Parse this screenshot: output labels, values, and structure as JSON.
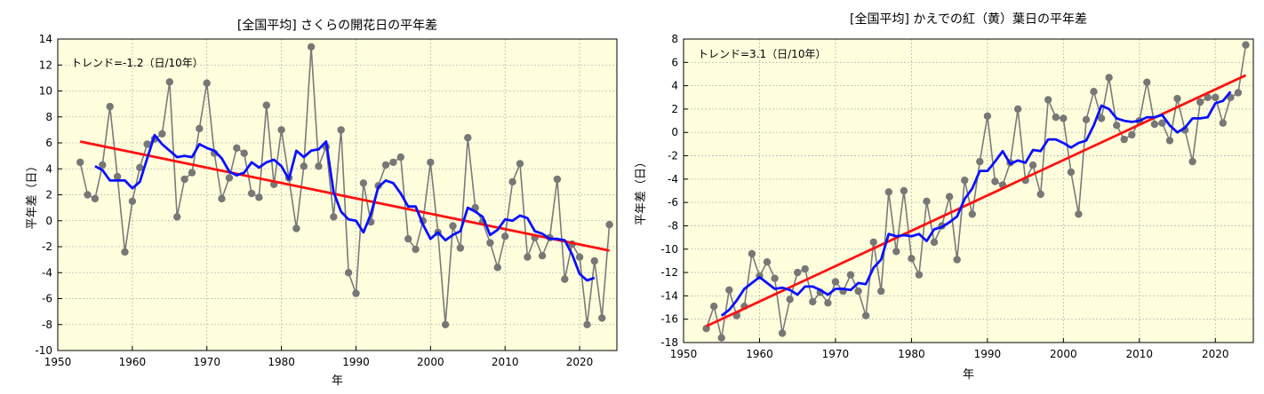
{
  "chart_data": [
    {
      "type": "line",
      "title": "[全国平均] さくらの開花日の平年差",
      "xlabel": "年",
      "ylabel": "平年差（日）",
      "annotation": "トレンド=-1.2（日/10年）",
      "xlim": [
        1950,
        2025
      ],
      "ylim": [
        -10,
        14
      ],
      "xticks": [
        1950,
        1960,
        1970,
        1980,
        1990,
        2000,
        2010,
        2020
      ],
      "yticks": [
        -10,
        -8,
        -6,
        -4,
        -2,
        0,
        2,
        4,
        6,
        8,
        10,
        12,
        14
      ],
      "grid": true,
      "background": "#FFFFDD",
      "colors": {
        "observed": "#7a7a7a",
        "marker": "#777777",
        "moving_average": "#0a10ff",
        "trend": "#ff1010"
      },
      "series": [
        {
          "role": "observed",
          "x": [
            1953,
            1954,
            1955,
            1956,
            1957,
            1958,
            1959,
            1960,
            1961,
            1962,
            1963,
            1964,
            1965,
            1966,
            1967,
            1968,
            1969,
            1970,
            1971,
            1972,
            1973,
            1974,
            1975,
            1976,
            1977,
            1978,
            1979,
            1980,
            1981,
            1982,
            1983,
            1984,
            1985,
            1986,
            1987,
            1988,
            1989,
            1990,
            1991,
            1992,
            1993,
            1994,
            1995,
            1996,
            1997,
            1998,
            1999,
            2000,
            2001,
            2002,
            2003,
            2004,
            2005,
            2006,
            2007,
            2008,
            2009,
            2010,
            2011,
            2012,
            2013,
            2014,
            2015,
            2016,
            2017,
            2018,
            2019,
            2020,
            2021,
            2022,
            2023,
            2024
          ],
          "y": [
            4.5,
            2.0,
            1.7,
            4.3,
            8.8,
            3.4,
            -2.4,
            1.5,
            4.1,
            5.9,
            6.3,
            6.7,
            10.7,
            0.3,
            3.2,
            3.7,
            7.1,
            10.6,
            5.2,
            1.7,
            3.3,
            5.6,
            5.2,
            2.1,
            1.8,
            8.9,
            2.8,
            7.0,
            3.3,
            -0.6,
            4.2,
            13.4,
            4.2,
            5.7,
            0.3,
            7.0,
            -4.0,
            -5.6,
            2.9,
            -0.1,
            2.7,
            4.3,
            4.5,
            4.9,
            -1.4,
            -2.2,
            0.0,
            4.5,
            -0.9,
            -8.0,
            -0.4,
            -2.1,
            6.4,
            1.0,
            -0.1,
            -1.7,
            -3.6,
            -1.2,
            3.0,
            4.4,
            -2.8,
            -1.3,
            -2.7,
            -1.3,
            3.2,
            -4.5,
            -1.8,
            -2.8,
            -8.0,
            -3.1,
            -7.5,
            -0.3
          ]
        },
        {
          "role": "moving_average",
          "x": [
            1955,
            1956,
            1957,
            1958,
            1959,
            1960,
            1961,
            1962,
            1963,
            1964,
            1965,
            1966,
            1967,
            1968,
            1969,
            1970,
            1971,
            1972,
            1973,
            1974,
            1975,
            1976,
            1977,
            1978,
            1979,
            1980,
            1981,
            1982,
            1983,
            1984,
            1985,
            1986,
            1987,
            1988,
            1989,
            1990,
            1991,
            1992,
            1993,
            1994,
            1995,
            1996,
            1997,
            1998,
            1999,
            2000,
            2001,
            2002,
            2003,
            2004,
            2005,
            2006,
            2007,
            2008,
            2009,
            2010,
            2011,
            2012,
            2013,
            2014,
            2015,
            2016,
            2017,
            2018,
            2019,
            2020,
            2021,
            2022
          ],
          "y": [
            4.2,
            3.9,
            3.1,
            3.1,
            3.1,
            2.5,
            3.0,
            4.8,
            6.6,
            5.9,
            5.4,
            4.9,
            5.0,
            4.9,
            5.9,
            5.6,
            5.4,
            4.8,
            3.8,
            3.5,
            3.7,
            4.5,
            4.1,
            4.5,
            4.7,
            4.2,
            3.2,
            5.4,
            4.9,
            5.4,
            5.5,
            6.1,
            2.2,
            0.7,
            0.1,
            0.0,
            -0.9,
            0.5,
            2.6,
            3.1,
            2.9,
            2.1,
            1.1,
            1.1,
            -0.3,
            -1.4,
            -0.9,
            -1.5,
            -1.1,
            -0.8,
            1.0,
            0.7,
            0.3,
            -1.1,
            -0.7,
            0.1,
            0.0,
            0.4,
            0.2,
            -0.8,
            -1.0,
            -1.4,
            -1.4,
            -1.5,
            -2.6,
            -4.1,
            -4.6,
            -4.4
          ]
        },
        {
          "role": "trend",
          "x": [
            1953,
            2024
          ],
          "y": [
            6.1,
            -2.3
          ]
        }
      ]
    },
    {
      "type": "line",
      "title": "[全国平均] かえでの紅（黄）葉日の平年差",
      "xlabel": "年",
      "ylabel": "平年差（日）",
      "annotation": "トレンド=3.1（日/10年）",
      "xlim": [
        1950,
        2025
      ],
      "ylim": [
        -18,
        8
      ],
      "xticks": [
        1950,
        1960,
        1970,
        1980,
        1990,
        2000,
        2010,
        2020
      ],
      "yticks": [
        -18,
        -16,
        -14,
        -12,
        -10,
        -8,
        -6,
        -4,
        -2,
        0,
        2,
        4,
        6,
        8
      ],
      "grid": true,
      "background": "#FFFFDD",
      "colors": {
        "observed": "#7a7a7a",
        "marker": "#777777",
        "moving_average": "#0a10ff",
        "trend": "#ff1010"
      },
      "series": [
        {
          "role": "observed",
          "x": [
            1953,
            1954,
            1955,
            1956,
            1957,
            1958,
            1959,
            1960,
            1961,
            1962,
            1963,
            1964,
            1965,
            1966,
            1967,
            1968,
            1969,
            1970,
            1971,
            1972,
            1973,
            1974,
            1975,
            1976,
            1977,
            1978,
            1979,
            1980,
            1981,
            1982,
            1983,
            1984,
            1985,
            1986,
            1987,
            1988,
            1989,
            1990,
            1991,
            1992,
            1993,
            1994,
            1995,
            1996,
            1997,
            1998,
            1999,
            2000,
            2001,
            2002,
            2003,
            2004,
            2005,
            2006,
            2007,
            2008,
            2009,
            2010,
            2011,
            2012,
            2013,
            2014,
            2015,
            2016,
            2017,
            2018,
            2019,
            2020,
            2021,
            2022,
            2023,
            2024
          ],
          "y": [
            -16.8,
            -14.9,
            -17.6,
            -13.5,
            -15.7,
            -14.9,
            -10.4,
            -12.3,
            -11.1,
            -12.5,
            -17.2,
            -14.3,
            -12.0,
            -11.7,
            -14.5,
            -13.7,
            -14.6,
            -12.8,
            -13.6,
            -12.2,
            -13.6,
            -15.7,
            -9.4,
            -13.6,
            -5.1,
            -10.2,
            -5.0,
            -10.8,
            -12.2,
            -5.9,
            -9.4,
            -8.0,
            -5.5,
            -10.9,
            -4.1,
            -7.0,
            -2.5,
            1.4,
            -4.2,
            -4.5,
            -2.6,
            2.0,
            -4.1,
            -2.8,
            -5.3,
            2.8,
            1.3,
            1.2,
            -3.4,
            -7.0,
            1.1,
            3.5,
            1.2,
            4.7,
            0.6,
            -0.6,
            -0.2,
            1.0,
            4.3,
            0.7,
            0.8,
            -0.7,
            2.9,
            0.2,
            -2.5,
            2.6,
            3.0,
            3.0,
            0.8,
            3.0,
            3.4,
            7.5
          ]
        },
        {
          "role": "moving_average",
          "x": [
            1955,
            1956,
            1957,
            1958,
            1959,
            1960,
            1961,
            1962,
            1963,
            1964,
            1965,
            1966,
            1967,
            1968,
            1969,
            1970,
            1971,
            1972,
            1973,
            1974,
            1975,
            1976,
            1977,
            1978,
            1979,
            1980,
            1981,
            1982,
            1983,
            1984,
            1985,
            1986,
            1987,
            1988,
            1989,
            1990,
            1991,
            1992,
            1993,
            1994,
            1995,
            1996,
            1997,
            1998,
            1999,
            2000,
            2001,
            2002,
            2003,
            2004,
            2005,
            2006,
            2007,
            2008,
            2009,
            2010,
            2011,
            2012,
            2013,
            2014,
            2015,
            2016,
            2017,
            2018,
            2019,
            2020,
            2021,
            2022
          ],
          "y": [
            -15.7,
            -15.2,
            -14.4,
            -13.4,
            -12.9,
            -12.4,
            -12.9,
            -13.4,
            -13.3,
            -13.5,
            -13.9,
            -13.2,
            -13.2,
            -13.5,
            -13.9,
            -13.4,
            -13.4,
            -13.5,
            -12.9,
            -13.0,
            -11.6,
            -10.9,
            -8.7,
            -8.9,
            -8.8,
            -8.9,
            -8.7,
            -9.3,
            -8.3,
            -8.1,
            -7.7,
            -7.2,
            -5.7,
            -4.8,
            -3.3,
            -3.3,
            -2.5,
            -1.6,
            -2.7,
            -2.4,
            -2.6,
            -1.5,
            -1.6,
            -0.6,
            -0.6,
            -0.9,
            -1.3,
            -0.9,
            -0.7,
            0.6,
            2.3,
            2.0,
            1.2,
            1.0,
            0.9,
            1.0,
            1.3,
            1.3,
            1.5,
            0.6,
            0.0,
            0.4,
            1.2,
            1.2,
            1.3,
            2.5,
            2.7,
            3.5
          ]
        },
        {
          "role": "trend",
          "x": [
            1953,
            2024
          ],
          "y": [
            -16.6,
            4.9
          ]
        }
      ]
    }
  ]
}
